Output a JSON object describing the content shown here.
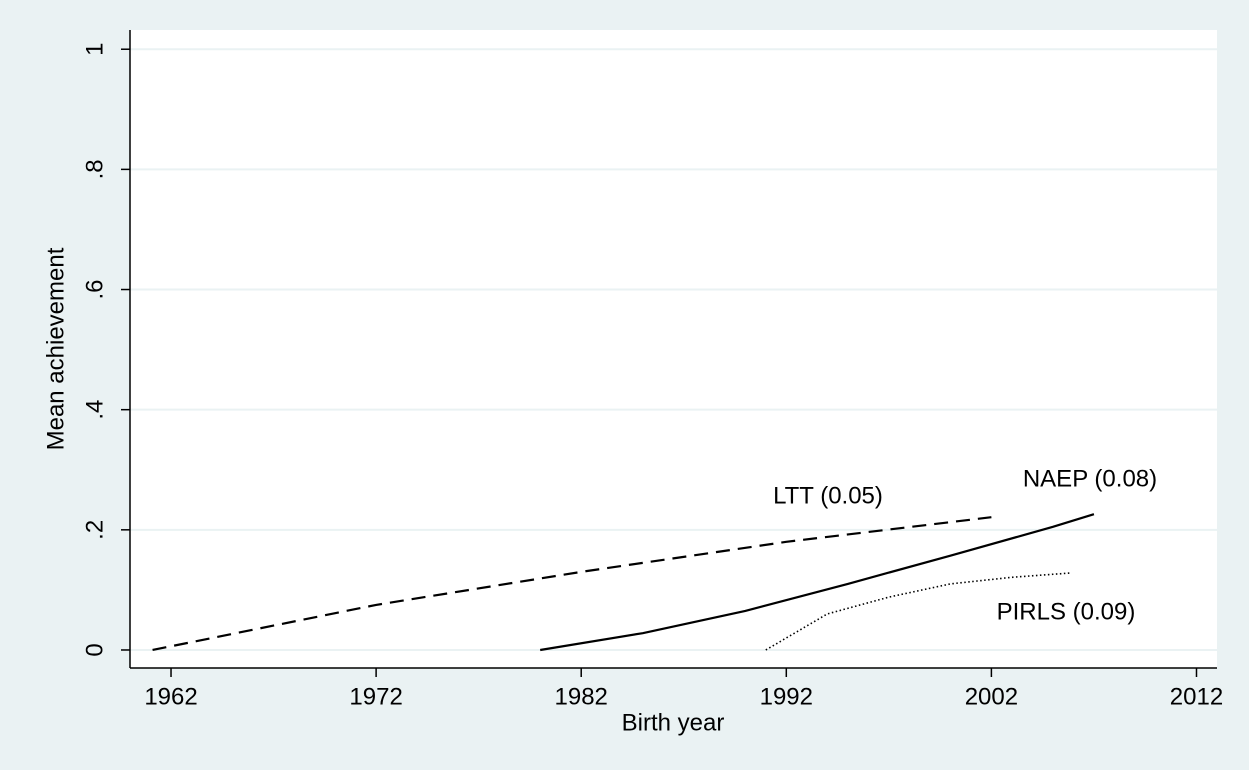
{
  "chart_data": {
    "type": "line",
    "xlabel": "Birth year",
    "ylabel": "Mean achievement",
    "xlim": [
      1960,
      2013
    ],
    "ylim": [
      -0.03,
      1.032
    ],
    "xticks": [
      1962,
      1972,
      1982,
      1992,
      2002,
      2012
    ],
    "yticks": [
      0,
      {
        "value": 0.2,
        "label": ".2"
      },
      {
        "value": 0.4,
        "label": ".4"
      },
      {
        "value": 0.6,
        "label": ".6"
      },
      {
        "value": 0.8,
        "label": ".8"
      },
      1
    ],
    "grid": true,
    "series": [
      {
        "name": "LTT (0.05)",
        "color": "#000000",
        "style": "dashed",
        "x": [
          1961.1,
          1972,
          1982,
          1992,
          2002
        ],
        "values": [
          0,
          0.075,
          0.13,
          0.18,
          0.221
        ]
      },
      {
        "name": "NAEP (0.08)",
        "color": "#000000",
        "style": "solid",
        "x": [
          1980,
          1985,
          1990,
          1995,
          2000,
          2005,
          2007
        ],
        "values": [
          0,
          0.028,
          0.065,
          0.11,
          0.157,
          0.205,
          0.226
        ]
      },
      {
        "name": "PIRLS (0.09)",
        "color": "#000000",
        "style": "dotted",
        "x": [
          1991,
          1994,
          1997,
          2000,
          2003,
          2005.8
        ],
        "values": [
          0,
          0.06,
          0.088,
          0.11,
          0.121,
          0.128
        ]
      }
    ]
  }
}
